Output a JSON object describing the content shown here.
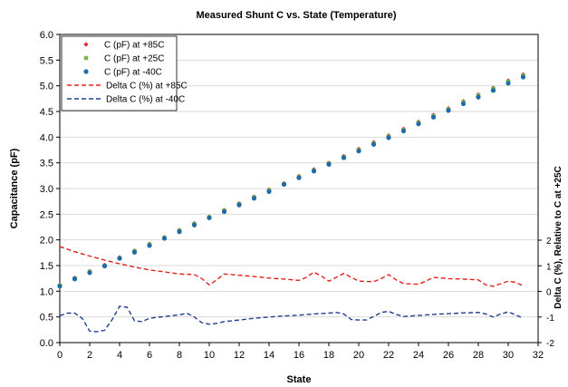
{
  "chart_data": {
    "type": "scatter",
    "title": "Measured Shunt C vs. State (Temperature)",
    "xlabel": "State",
    "ylabel": "Capacitance (pF)",
    "y2label": "Delta C (%), Relative to C at +25C",
    "xlim": [
      0,
      32
    ],
    "ylim": [
      0.0,
      6.0
    ],
    "y2lim": [
      -2,
      2
    ],
    "xticks": [
      "0",
      "2",
      "4",
      "6",
      "8",
      "10",
      "12",
      "14",
      "16",
      "18",
      "20",
      "22",
      "24",
      "26",
      "28",
      "30",
      "32"
    ],
    "yticks": [
      "0.0",
      "0.5",
      "1.0",
      "1.5",
      "2.0",
      "2.5",
      "3.0",
      "3.5",
      "4.0",
      "4.5",
      "5.0",
      "5.5",
      "6.0"
    ],
    "y2ticks": [
      "-2",
      "-1",
      "0",
      "1",
      "2"
    ],
    "x": [
      0,
      1,
      2,
      3,
      4,
      5,
      6,
      7,
      8,
      9,
      10,
      11,
      12,
      13,
      14,
      15,
      16,
      17,
      18,
      19,
      20,
      21,
      22,
      23,
      24,
      25,
      26,
      27,
      28,
      29,
      30,
      31
    ],
    "legend_position": "top-left",
    "grid": "horizontal",
    "series": [
      {
        "name": "C (pF) at +85C",
        "axis": "left",
        "marker": "diamond",
        "color": "#e03030",
        "values": [
          1.12,
          1.26,
          1.39,
          1.51,
          1.66,
          1.79,
          1.92,
          2.05,
          2.19,
          2.32,
          2.45,
          2.58,
          2.71,
          2.84,
          2.98,
          3.1,
          3.24,
          3.37,
          3.5,
          3.63,
          3.77,
          3.9,
          4.03,
          4.16,
          4.3,
          4.43,
          4.56,
          4.7,
          4.83,
          4.96,
          5.1,
          5.22
        ]
      },
      {
        "name": "C (pF) at +25C",
        "axis": "left",
        "marker": "square",
        "color": "#7ab648",
        "values": [
          1.11,
          1.25,
          1.38,
          1.5,
          1.64,
          1.78,
          1.91,
          2.04,
          2.18,
          2.31,
          2.44,
          2.57,
          2.7,
          2.83,
          2.97,
          3.09,
          3.23,
          3.35,
          3.49,
          3.61,
          3.75,
          3.88,
          4.01,
          4.14,
          4.28,
          4.41,
          4.54,
          4.68,
          4.81,
          4.94,
          5.08,
          5.2
        ]
      },
      {
        "name": "C (pF) at -40C",
        "axis": "left",
        "marker": "circle",
        "color": "#1f6aa8",
        "values": [
          1.1,
          1.24,
          1.36,
          1.49,
          1.64,
          1.76,
          1.89,
          2.03,
          2.16,
          2.29,
          2.43,
          2.55,
          2.68,
          2.81,
          2.94,
          3.08,
          3.21,
          3.34,
          3.47,
          3.6,
          3.73,
          3.86,
          3.99,
          4.12,
          4.26,
          4.39,
          4.52,
          4.65,
          4.78,
          4.91,
          5.05,
          5.17
        ]
      },
      {
        "name": "Delta C (%) at +85C",
        "axis": "right",
        "style": "dashed",
        "color": "#e02020",
        "x": [
          0,
          1,
          2,
          3,
          4,
          5,
          6,
          7,
          8,
          9,
          9.5,
          10,
          10.5,
          11,
          12,
          13,
          14,
          15,
          16,
          16.5,
          17,
          17.5,
          18,
          18.5,
          19,
          20,
          21,
          21.5,
          22,
          22.5,
          23,
          24,
          24.5,
          25,
          26,
          27,
          28,
          28.5,
          29,
          30,
          30.5,
          31
        ],
        "values": [
          1.75,
          1.55,
          1.38,
          1.22,
          1.08,
          0.95,
          0.84,
          0.76,
          0.68,
          0.66,
          0.5,
          0.25,
          0.45,
          0.68,
          0.63,
          0.58,
          0.52,
          0.48,
          0.43,
          0.55,
          0.75,
          0.6,
          0.4,
          0.55,
          0.7,
          0.4,
          0.38,
          0.5,
          0.65,
          0.45,
          0.3,
          0.28,
          0.4,
          0.55,
          0.5,
          0.48,
          0.45,
          0.25,
          0.2,
          0.4,
          0.35,
          0.22
        ]
      },
      {
        "name": "Delta C (%) at -40C",
        "axis": "right",
        "style": "dashed",
        "color": "#1f3f8f",
        "x": [
          0,
          0.5,
          1,
          1.5,
          2,
          2.5,
          3,
          3.5,
          4,
          4.5,
          5,
          5.5,
          6,
          7,
          8,
          8.5,
          9,
          9.5,
          10,
          10.5,
          11,
          12,
          13,
          14,
          15,
          16,
          17,
          18,
          18.5,
          19,
          19.5,
          20,
          20.5,
          21,
          21.5,
          22,
          22.5,
          23,
          24,
          25,
          26,
          27,
          28,
          28.5,
          29,
          29.5,
          30,
          30.5,
          31
        ],
        "values": [
          -0.95,
          -0.85,
          -0.85,
          -1.05,
          -1.55,
          -1.58,
          -1.52,
          -1.1,
          -0.58,
          -0.62,
          -1.15,
          -1.18,
          -1.05,
          -0.98,
          -0.92,
          -0.85,
          -1.0,
          -1.22,
          -1.28,
          -1.25,
          -1.18,
          -1.12,
          -1.05,
          -1.0,
          -0.96,
          -0.93,
          -0.88,
          -0.85,
          -0.82,
          -0.88,
          -1.1,
          -1.12,
          -1.12,
          -0.98,
          -0.82,
          -0.78,
          -0.9,
          -0.98,
          -0.94,
          -0.9,
          -0.87,
          -0.84,
          -0.82,
          -0.88,
          -1.0,
          -0.88,
          -0.8,
          -0.92,
          -1.05
        ]
      }
    ]
  }
}
